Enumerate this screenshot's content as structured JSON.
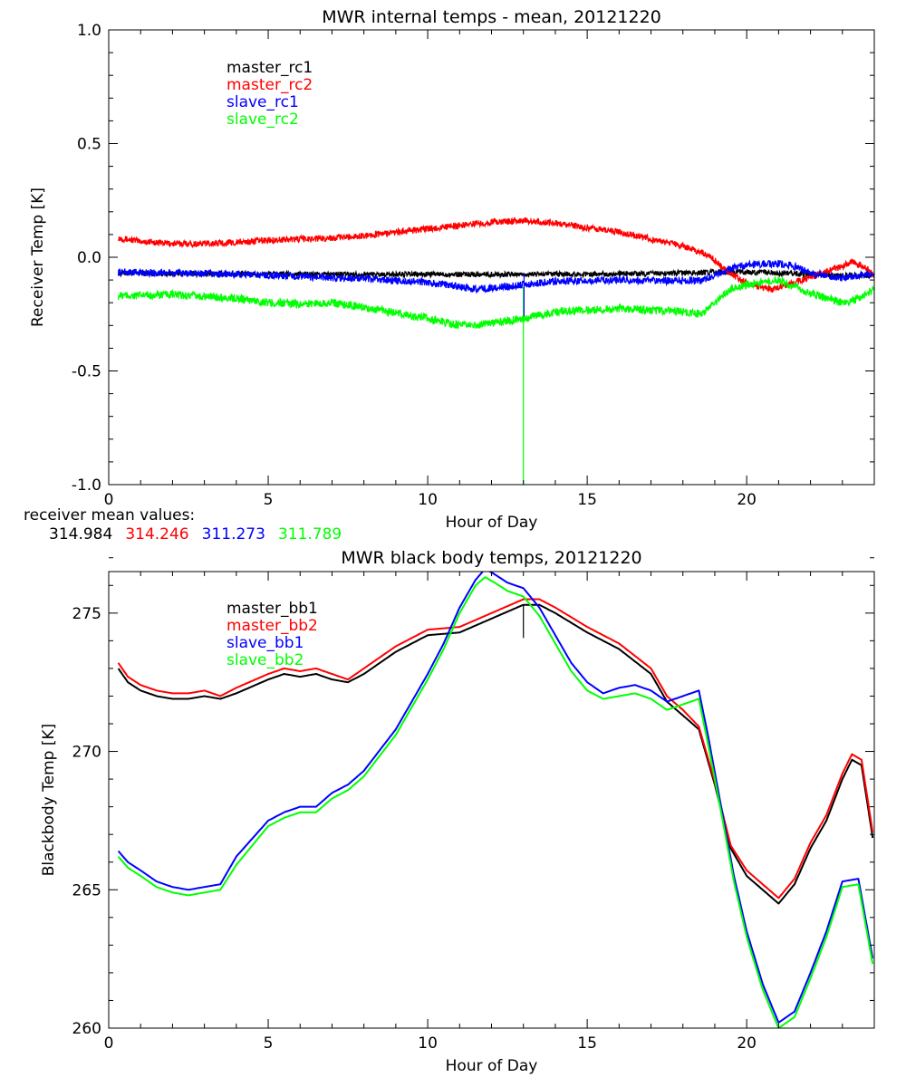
{
  "colors": {
    "black": "#000000",
    "red": "#ff0000",
    "blue": "#0000ff",
    "green": "#00ff00"
  },
  "receiver_means": {
    "label": "receiver mean values:",
    "values": [
      "314.984",
      "314.246",
      "311.273",
      "311.789"
    ]
  },
  "chart_data": [
    {
      "type": "line",
      "title": "MWR internal temps - mean, 20121220",
      "xlabel": "Hour of Day",
      "ylabel": "Receiver Temp [K]",
      "xlim": [
        0,
        24
      ],
      "ylim": [
        -1.0,
        1.0
      ],
      "xticks": [
        0,
        5,
        10,
        15,
        20
      ],
      "xtick_labels": [
        "0",
        "5",
        "10",
        "15",
        "20"
      ],
      "yticks": [
        -1.0,
        -0.5,
        0.0,
        0.5,
        1.0
      ],
      "ytick_labels": [
        "-1.0",
        "-0.5",
        "0.0",
        "0.5",
        "1.0"
      ],
      "xminor": 1,
      "yminor": 0.1,
      "legend_position": "top-left",
      "series": [
        {
          "name": "master_rc1",
          "color": "#000000",
          "noise": 0.012,
          "x": [
            0.3,
            2,
            4,
            6,
            8,
            10,
            12,
            14,
            16,
            18,
            19,
            20,
            21,
            22,
            23,
            24
          ],
          "y": [
            -0.07,
            -0.072,
            -0.073,
            -0.075,
            -0.075,
            -0.075,
            -0.075,
            -0.075,
            -0.073,
            -0.07,
            -0.065,
            -0.065,
            -0.07,
            -0.075,
            -0.08,
            -0.08
          ]
        },
        {
          "name": "master_rc2",
          "color": "#ff0000",
          "noise": 0.014,
          "x": [
            0.3,
            1,
            2,
            3,
            4,
            5,
            6,
            7,
            8,
            9,
            10,
            11,
            12,
            13,
            14,
            15,
            16,
            17,
            18,
            18.8,
            19.3,
            19.8,
            20.3,
            20.8,
            21.3,
            22,
            22.5,
            23,
            23.3,
            23.7,
            24
          ],
          "y": [
            0.085,
            0.07,
            0.06,
            0.06,
            0.065,
            0.075,
            0.08,
            0.085,
            0.095,
            0.11,
            0.125,
            0.14,
            0.155,
            0.16,
            0.15,
            0.13,
            0.11,
            0.08,
            0.05,
            0.01,
            -0.05,
            -0.1,
            -0.13,
            -0.14,
            -0.12,
            -0.09,
            -0.06,
            -0.04,
            -0.02,
            -0.04,
            -0.08
          ]
        },
        {
          "name": "slave_rc1",
          "color": "#0000ff",
          "noise": 0.016,
          "x": [
            0.3,
            2,
            4,
            6,
            8,
            10,
            11,
            11.5,
            12,
            13,
            14,
            16,
            18,
            18.6,
            19,
            19.5,
            20,
            20.5,
            21,
            21.5,
            22,
            22.5,
            23,
            23.5,
            24
          ],
          "y": [
            -0.065,
            -0.07,
            -0.075,
            -0.085,
            -0.095,
            -0.11,
            -0.13,
            -0.14,
            -0.135,
            -0.12,
            -0.105,
            -0.1,
            -0.105,
            -0.1,
            -0.08,
            -0.05,
            -0.035,
            -0.03,
            -0.03,
            -0.04,
            -0.07,
            -0.08,
            -0.09,
            -0.08,
            -0.07
          ]
        },
        {
          "name": "slave_rc2",
          "color": "#00ff00",
          "noise": 0.018,
          "x": [
            0.3,
            2,
            4,
            5,
            6,
            7,
            8,
            9,
            10,
            11,
            11.5,
            12,
            13,
            14,
            16,
            18,
            18.6,
            19,
            19.5,
            20,
            21,
            22,
            22.5,
            23,
            23.5,
            24
          ],
          "y": [
            -0.17,
            -0.165,
            -0.18,
            -0.2,
            -0.205,
            -0.2,
            -0.22,
            -0.245,
            -0.27,
            -0.3,
            -0.3,
            -0.29,
            -0.27,
            -0.24,
            -0.225,
            -0.24,
            -0.25,
            -0.2,
            -0.14,
            -0.12,
            -0.1,
            -0.16,
            -0.18,
            -0.2,
            -0.18,
            -0.14
          ]
        }
      ],
      "annotations": [
        {
          "type": "spike",
          "x": 13.0,
          "y_from": -0.13,
          "y_to": -1.0,
          "color": "#00ff00"
        },
        {
          "type": "spike",
          "x": 13.02,
          "y_from": -0.07,
          "y_to": -0.26,
          "color": "#0000ff"
        }
      ]
    },
    {
      "type": "line",
      "title": "MWR black body temps, 20121220",
      "xlabel": "Hour of Day",
      "ylabel": "Blackbody Temp [K]",
      "xlim": [
        0,
        24
      ],
      "ylim": [
        260,
        276.5
      ],
      "xticks": [
        0,
        5,
        10,
        15,
        20
      ],
      "xtick_labels": [
        "0",
        "5",
        "10",
        "15",
        "20"
      ],
      "yticks": [
        260,
        265,
        270,
        275
      ],
      "ytick_labels": [
        "260",
        "265",
        "270",
        "275"
      ],
      "xminor": 1,
      "yminor": 1,
      "legend_position": "top-left",
      "series": [
        {
          "name": "master_bb1",
          "color": "#000000",
          "x": [
            0.3,
            0.6,
            1,
            1.5,
            2,
            2.5,
            3,
            3.5,
            4,
            5,
            5.5,
            6,
            6.5,
            7,
            7.5,
            8,
            9,
            10,
            11,
            12,
            13,
            13.5,
            14,
            15,
            16,
            17,
            17.5,
            18,
            18.5,
            19,
            19.5,
            20,
            20.5,
            21,
            21.5,
            22,
            22.5,
            23,
            23.3,
            23.6,
            24
          ],
          "y": [
            273.0,
            272.5,
            272.2,
            272.0,
            271.9,
            271.9,
            272.0,
            271.9,
            272.1,
            272.6,
            272.8,
            272.7,
            272.8,
            272.6,
            272.5,
            272.8,
            273.6,
            274.2,
            274.3,
            274.8,
            275.3,
            275.3,
            275.0,
            274.3,
            273.7,
            272.8,
            271.8,
            271.3,
            270.8,
            268.8,
            266.5,
            265.5,
            265.0,
            264.5,
            265.2,
            266.5,
            267.5,
            269.0,
            269.7,
            269.5,
            266.5
          ]
        },
        {
          "name": "master_bb2",
          "color": "#ff0000",
          "x": [
            0.3,
            0.6,
            1,
            1.5,
            2,
            2.5,
            3,
            3.5,
            4,
            5,
            5.5,
            6,
            6.5,
            7,
            7.5,
            8,
            9,
            10,
            11,
            12,
            13,
            13.5,
            14,
            15,
            16,
            17,
            17.5,
            18,
            18.5,
            19,
            19.5,
            20,
            20.5,
            21,
            21.5,
            22,
            22.5,
            23,
            23.3,
            23.6,
            24
          ],
          "y": [
            273.2,
            272.7,
            272.4,
            272.2,
            272.1,
            272.1,
            272.2,
            272.0,
            272.3,
            272.8,
            273.0,
            272.9,
            273.0,
            272.8,
            272.6,
            273.0,
            273.8,
            274.4,
            274.5,
            275.0,
            275.5,
            275.5,
            275.2,
            274.5,
            273.9,
            273.0,
            272.0,
            271.5,
            270.9,
            268.9,
            266.6,
            265.7,
            265.2,
            264.7,
            265.4,
            266.7,
            267.7,
            269.2,
            269.9,
            269.7,
            266.7
          ]
        },
        {
          "name": "slave_bb1",
          "color": "#0000ff",
          "x": [
            0.3,
            0.6,
            1,
            1.5,
            2,
            2.5,
            3,
            3.5,
            4,
            5,
            5.5,
            6,
            6.5,
            7,
            7.5,
            8,
            9,
            10,
            10.5,
            11,
            11.5,
            11.8,
            12.1,
            12.5,
            13,
            13.5,
            14,
            14.5,
            15,
            15.5,
            16,
            16.5,
            17,
            17.5,
            18,
            18.5,
            18.8,
            19.2,
            19.6,
            20,
            20.5,
            21,
            21.5,
            22,
            22.5,
            23,
            23.5,
            24
          ],
          "y": [
            266.4,
            266.0,
            265.7,
            265.3,
            265.1,
            265.0,
            265.1,
            265.2,
            266.2,
            267.5,
            267.8,
            268.0,
            268.0,
            268.5,
            268.8,
            269.3,
            270.8,
            272.8,
            273.9,
            275.2,
            276.2,
            276.6,
            276.4,
            276.1,
            275.9,
            275.2,
            274.2,
            273.2,
            272.5,
            272.1,
            272.3,
            272.4,
            272.2,
            271.8,
            272.0,
            272.2,
            270.5,
            268.0,
            265.5,
            263.5,
            261.6,
            260.2,
            260.6,
            262.0,
            263.5,
            265.3,
            265.4,
            262.2
          ]
        },
        {
          "name": "slave_bb2",
          "color": "#00ff00",
          "x": [
            0.3,
            0.6,
            1,
            1.5,
            2,
            2.5,
            3,
            3.5,
            4,
            5,
            5.5,
            6,
            6.5,
            7,
            7.5,
            8,
            9,
            10,
            10.5,
            11,
            11.5,
            11.8,
            12.1,
            12.5,
            13,
            13.5,
            14,
            14.5,
            15,
            15.5,
            16,
            16.5,
            17,
            17.5,
            18,
            18.5,
            18.8,
            19.2,
            19.6,
            20,
            20.5,
            21,
            21.5,
            22,
            22.5,
            23,
            23.5,
            24
          ],
          "y": [
            266.2,
            265.8,
            265.5,
            265.1,
            264.9,
            264.8,
            264.9,
            265.0,
            265.9,
            267.3,
            267.6,
            267.8,
            267.8,
            268.3,
            268.6,
            269.1,
            270.6,
            272.6,
            273.7,
            275.0,
            276.0,
            276.3,
            276.1,
            275.8,
            275.6,
            274.9,
            273.9,
            272.9,
            272.2,
            271.9,
            272.0,
            272.1,
            271.9,
            271.5,
            271.7,
            271.9,
            270.2,
            267.8,
            265.3,
            263.3,
            261.4,
            260.0,
            260.4,
            261.8,
            263.3,
            265.1,
            265.2,
            262.0
          ]
        }
      ],
      "annotations": [
        {
          "type": "spike",
          "x": 13.0,
          "y_from": 275.3,
          "y_to": 274.1,
          "color": "#000000"
        }
      ]
    }
  ]
}
